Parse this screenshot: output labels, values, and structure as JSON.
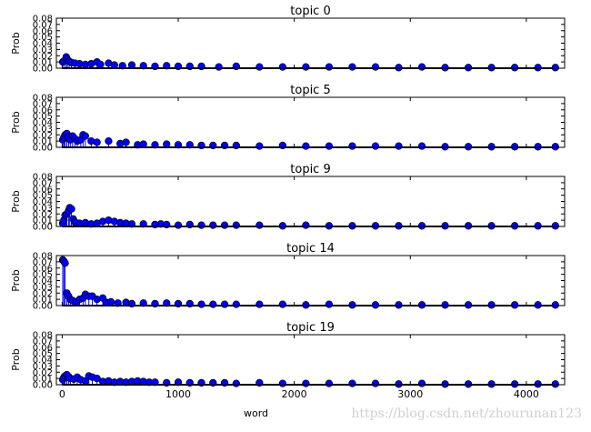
{
  "chart_data": {
    "type": "scatter",
    "xlabel": "word",
    "ylabel": "Prob",
    "xlim": [
      -50,
      4330
    ],
    "ylim": [
      0,
      0.08
    ],
    "x_ticks": [
      0,
      1000,
      2000,
      3000,
      4000
    ],
    "y_ticks": [
      "0.00",
      "0.01",
      "0.02",
      "0.03",
      "0.04",
      "0.05",
      "0.06",
      "0.07",
      "0.08"
    ],
    "marker_color": "#0000ff",
    "stem_color": "#0000ff",
    "baseline_color": "#000000",
    "grid": false,
    "panels": [
      {
        "title": "topic 0",
        "points": [
          [
            5,
            0.01
          ],
          [
            20,
            0.012
          ],
          [
            35,
            0.018
          ],
          [
            45,
            0.014
          ],
          [
            60,
            0.011
          ],
          [
            80,
            0.009
          ],
          [
            110,
            0.008
          ],
          [
            150,
            0.007
          ],
          [
            200,
            0.006
          ],
          [
            250,
            0.007
          ],
          [
            300,
            0.01
          ],
          [
            330,
            0.006
          ],
          [
            400,
            0.008
          ],
          [
            450,
            0.005
          ],
          [
            520,
            0.004
          ],
          [
            600,
            0.005
          ],
          [
            700,
            0.004
          ],
          [
            800,
            0.003
          ],
          [
            900,
            0.004
          ],
          [
            1000,
            0.003
          ],
          [
            1100,
            0.003
          ],
          [
            1200,
            0.003
          ],
          [
            1350,
            0.002
          ],
          [
            1500,
            0.003
          ],
          [
            1700,
            0.002
          ],
          [
            1900,
            0.002
          ],
          [
            2100,
            0.002
          ],
          [
            2300,
            0.002
          ],
          [
            2500,
            0.002
          ],
          [
            2700,
            0.002
          ],
          [
            2900,
            0.001
          ],
          [
            3100,
            0.002
          ],
          [
            3300,
            0.001
          ],
          [
            3500,
            0.001
          ],
          [
            3700,
            0.001
          ],
          [
            3900,
            0.001
          ],
          [
            4100,
            0.001
          ],
          [
            4250,
            0.001
          ]
        ]
      },
      {
        "title": "topic 5",
        "points": [
          [
            5,
            0.012
          ],
          [
            15,
            0.016
          ],
          [
            25,
            0.02
          ],
          [
            40,
            0.022
          ],
          [
            55,
            0.016
          ],
          [
            70,
            0.012
          ],
          [
            90,
            0.018
          ],
          [
            110,
            0.014
          ],
          [
            130,
            0.01
          ],
          [
            160,
            0.012
          ],
          [
            180,
            0.02
          ],
          [
            200,
            0.018
          ],
          [
            250,
            0.01
          ],
          [
            300,
            0.008
          ],
          [
            400,
            0.01
          ],
          [
            500,
            0.006
          ],
          [
            550,
            0.008
          ],
          [
            650,
            0.004
          ],
          [
            700,
            0.005
          ],
          [
            800,
            0.004
          ],
          [
            900,
            0.005
          ],
          [
            1000,
            0.004
          ],
          [
            1100,
            0.004
          ],
          [
            1200,
            0.003
          ],
          [
            1300,
            0.003
          ],
          [
            1400,
            0.003
          ],
          [
            1500,
            0.003
          ],
          [
            1700,
            0.002
          ],
          [
            1900,
            0.003
          ],
          [
            2100,
            0.002
          ],
          [
            2300,
            0.002
          ],
          [
            2500,
            0.002
          ],
          [
            2700,
            0.002
          ],
          [
            2900,
            0.002
          ],
          [
            3100,
            0.002
          ],
          [
            3300,
            0.001
          ],
          [
            3500,
            0.001
          ],
          [
            3700,
            0.001
          ],
          [
            3900,
            0.001
          ],
          [
            4100,
            0.001
          ],
          [
            4250,
            0.001
          ]
        ]
      },
      {
        "title": "topic 9",
        "points": [
          [
            5,
            0.005
          ],
          [
            15,
            0.01
          ],
          [
            25,
            0.018
          ],
          [
            40,
            0.02
          ],
          [
            55,
            0.025
          ],
          [
            65,
            0.03
          ],
          [
            80,
            0.028
          ],
          [
            95,
            0.012
          ],
          [
            110,
            0.007
          ],
          [
            150,
            0.005
          ],
          [
            200,
            0.006
          ],
          [
            250,
            0.004
          ],
          [
            300,
            0.005
          ],
          [
            350,
            0.008
          ],
          [
            400,
            0.01
          ],
          [
            450,
            0.008
          ],
          [
            500,
            0.006
          ],
          [
            550,
            0.005
          ],
          [
            600,
            0.004
          ],
          [
            700,
            0.004
          ],
          [
            800,
            0.003
          ],
          [
            850,
            0.004
          ],
          [
            900,
            0.003
          ],
          [
            1000,
            0.002
          ],
          [
            1100,
            0.003
          ],
          [
            1200,
            0.002
          ],
          [
            1300,
            0.002
          ],
          [
            1400,
            0.002
          ],
          [
            1500,
            0.002
          ],
          [
            1700,
            0.002
          ],
          [
            1900,
            0.001
          ],
          [
            2100,
            0.002
          ],
          [
            2300,
            0.001
          ],
          [
            2500,
            0.001
          ],
          [
            2700,
            0.001
          ],
          [
            2900,
            0.001
          ],
          [
            3100,
            0.001
          ],
          [
            3300,
            0.001
          ],
          [
            3500,
            0.001
          ],
          [
            3700,
            0.001
          ],
          [
            3900,
            0.001
          ],
          [
            4100,
            0.001
          ],
          [
            4250,
            0.001
          ]
        ]
      },
      {
        "title": "topic 14",
        "points": [
          [
            5,
            0.073
          ],
          [
            15,
            0.071
          ],
          [
            25,
            0.068
          ],
          [
            40,
            0.02
          ],
          [
            55,
            0.015
          ],
          [
            70,
            0.01
          ],
          [
            90,
            0.008
          ],
          [
            120,
            0.006
          ],
          [
            150,
            0.01
          ],
          [
            180,
            0.012
          ],
          [
            200,
            0.018
          ],
          [
            230,
            0.015
          ],
          [
            260,
            0.015
          ],
          [
            300,
            0.01
          ],
          [
            350,
            0.012
          ],
          [
            380,
            0.005
          ],
          [
            420,
            0.006
          ],
          [
            480,
            0.004
          ],
          [
            550,
            0.005
          ],
          [
            600,
            0.003
          ],
          [
            700,
            0.004
          ],
          [
            800,
            0.003
          ],
          [
            900,
            0.004
          ],
          [
            1000,
            0.003
          ],
          [
            1100,
            0.003
          ],
          [
            1200,
            0.002
          ],
          [
            1300,
            0.002
          ],
          [
            1400,
            0.002
          ],
          [
            1500,
            0.002
          ],
          [
            1700,
            0.002
          ],
          [
            1900,
            0.002
          ],
          [
            2100,
            0.001
          ],
          [
            2300,
            0.002
          ],
          [
            2500,
            0.001
          ],
          [
            2700,
            0.001
          ],
          [
            2900,
            0.001
          ],
          [
            3100,
            0.001
          ],
          [
            3300,
            0.001
          ],
          [
            3500,
            0.001
          ],
          [
            3700,
            0.001
          ],
          [
            3900,
            0.001
          ],
          [
            4100,
            0.001
          ],
          [
            4250,
            0.001
          ]
        ]
      },
      {
        "title": "topic 19",
        "points": [
          [
            5,
            0.008
          ],
          [
            15,
            0.012
          ],
          [
            25,
            0.014
          ],
          [
            40,
            0.016
          ],
          [
            55,
            0.013
          ],
          [
            70,
            0.01
          ],
          [
            100,
            0.009
          ],
          [
            130,
            0.012
          ],
          [
            160,
            0.008
          ],
          [
            200,
            0.006
          ],
          [
            230,
            0.014
          ],
          [
            260,
            0.012
          ],
          [
            300,
            0.01
          ],
          [
            350,
            0.005
          ],
          [
            400,
            0.006
          ],
          [
            450,
            0.004
          ],
          [
            500,
            0.005
          ],
          [
            550,
            0.004
          ],
          [
            600,
            0.005
          ],
          [
            650,
            0.006
          ],
          [
            700,
            0.005
          ],
          [
            750,
            0.004
          ],
          [
            800,
            0.004
          ],
          [
            900,
            0.003
          ],
          [
            1000,
            0.004
          ],
          [
            1100,
            0.003
          ],
          [
            1200,
            0.003
          ],
          [
            1300,
            0.003
          ],
          [
            1400,
            0.003
          ],
          [
            1500,
            0.002
          ],
          [
            1700,
            0.003
          ],
          [
            1900,
            0.002
          ],
          [
            2100,
            0.002
          ],
          [
            2300,
            0.002
          ],
          [
            2500,
            0.002
          ],
          [
            2700,
            0.002
          ],
          [
            2900,
            0.001
          ],
          [
            3100,
            0.002
          ],
          [
            3300,
            0.001
          ],
          [
            3500,
            0.001
          ],
          [
            3700,
            0.001
          ],
          [
            3900,
            0.001
          ],
          [
            4100,
            0.001
          ],
          [
            4250,
            0.001
          ]
        ]
      }
    ]
  },
  "watermark": "https://blog.csdn.net/zhourunan123"
}
